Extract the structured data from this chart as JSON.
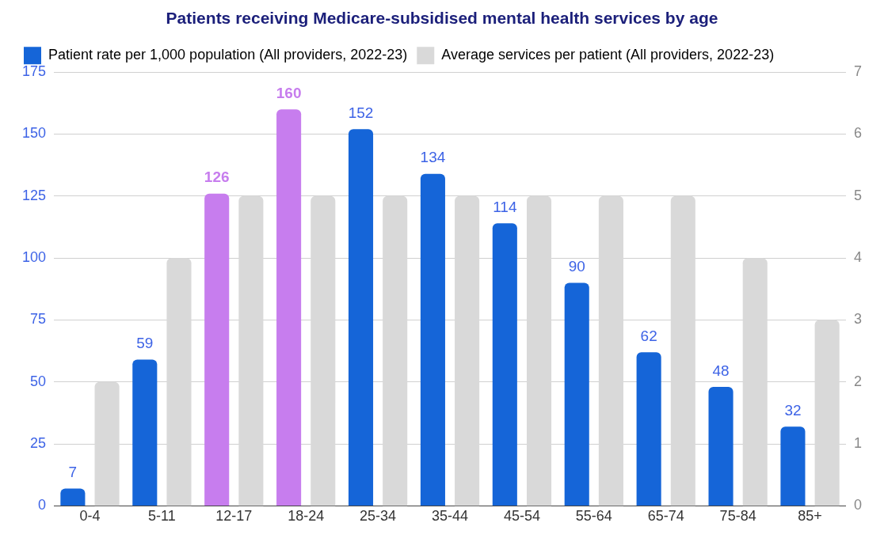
{
  "chart_data": {
    "type": "bar",
    "title": "Patients receiving Medicare-subsidised mental health services by age",
    "categories": [
      "0-4",
      "5-11",
      "12-17",
      "18-24",
      "25-34",
      "35-44",
      "45-54",
      "55-64",
      "65-74",
      "75-84",
      "85+"
    ],
    "series": [
      {
        "name": "Patient rate per 1,000 population (All providers, 2022-23)",
        "color": "#1565d8",
        "colors": [
          "#1565d8",
          "#1565d8",
          "#c77dee",
          "#c77dee",
          "#1565d8",
          "#1565d8",
          "#1565d8",
          "#1565d8",
          "#1565d8",
          "#1565d8",
          "#1565d8"
        ],
        "values": [
          7,
          59,
          126,
          160,
          152,
          134,
          114,
          90,
          62,
          48,
          32
        ],
        "value_labels": [
          "7",
          "59",
          "126",
          "160",
          "152",
          "134",
          "114",
          "90",
          "62",
          "48",
          "32"
        ]
      },
      {
        "name": "Average services per patient (All providers, 2022-23)",
        "color": "#d9d9d9",
        "axis": "y2",
        "values": [
          2,
          4,
          5,
          5,
          5,
          5,
          5,
          5,
          5,
          4,
          3
        ]
      }
    ],
    "ylim": [
      0,
      175
    ],
    "yticks": [
      0,
      25,
      50,
      75,
      100,
      125,
      150,
      175
    ],
    "y2lim": [
      0,
      7
    ],
    "y2ticks": [
      0,
      1,
      2,
      3,
      4,
      5,
      6,
      7
    ],
    "grid": "y",
    "legend": "top left"
  }
}
